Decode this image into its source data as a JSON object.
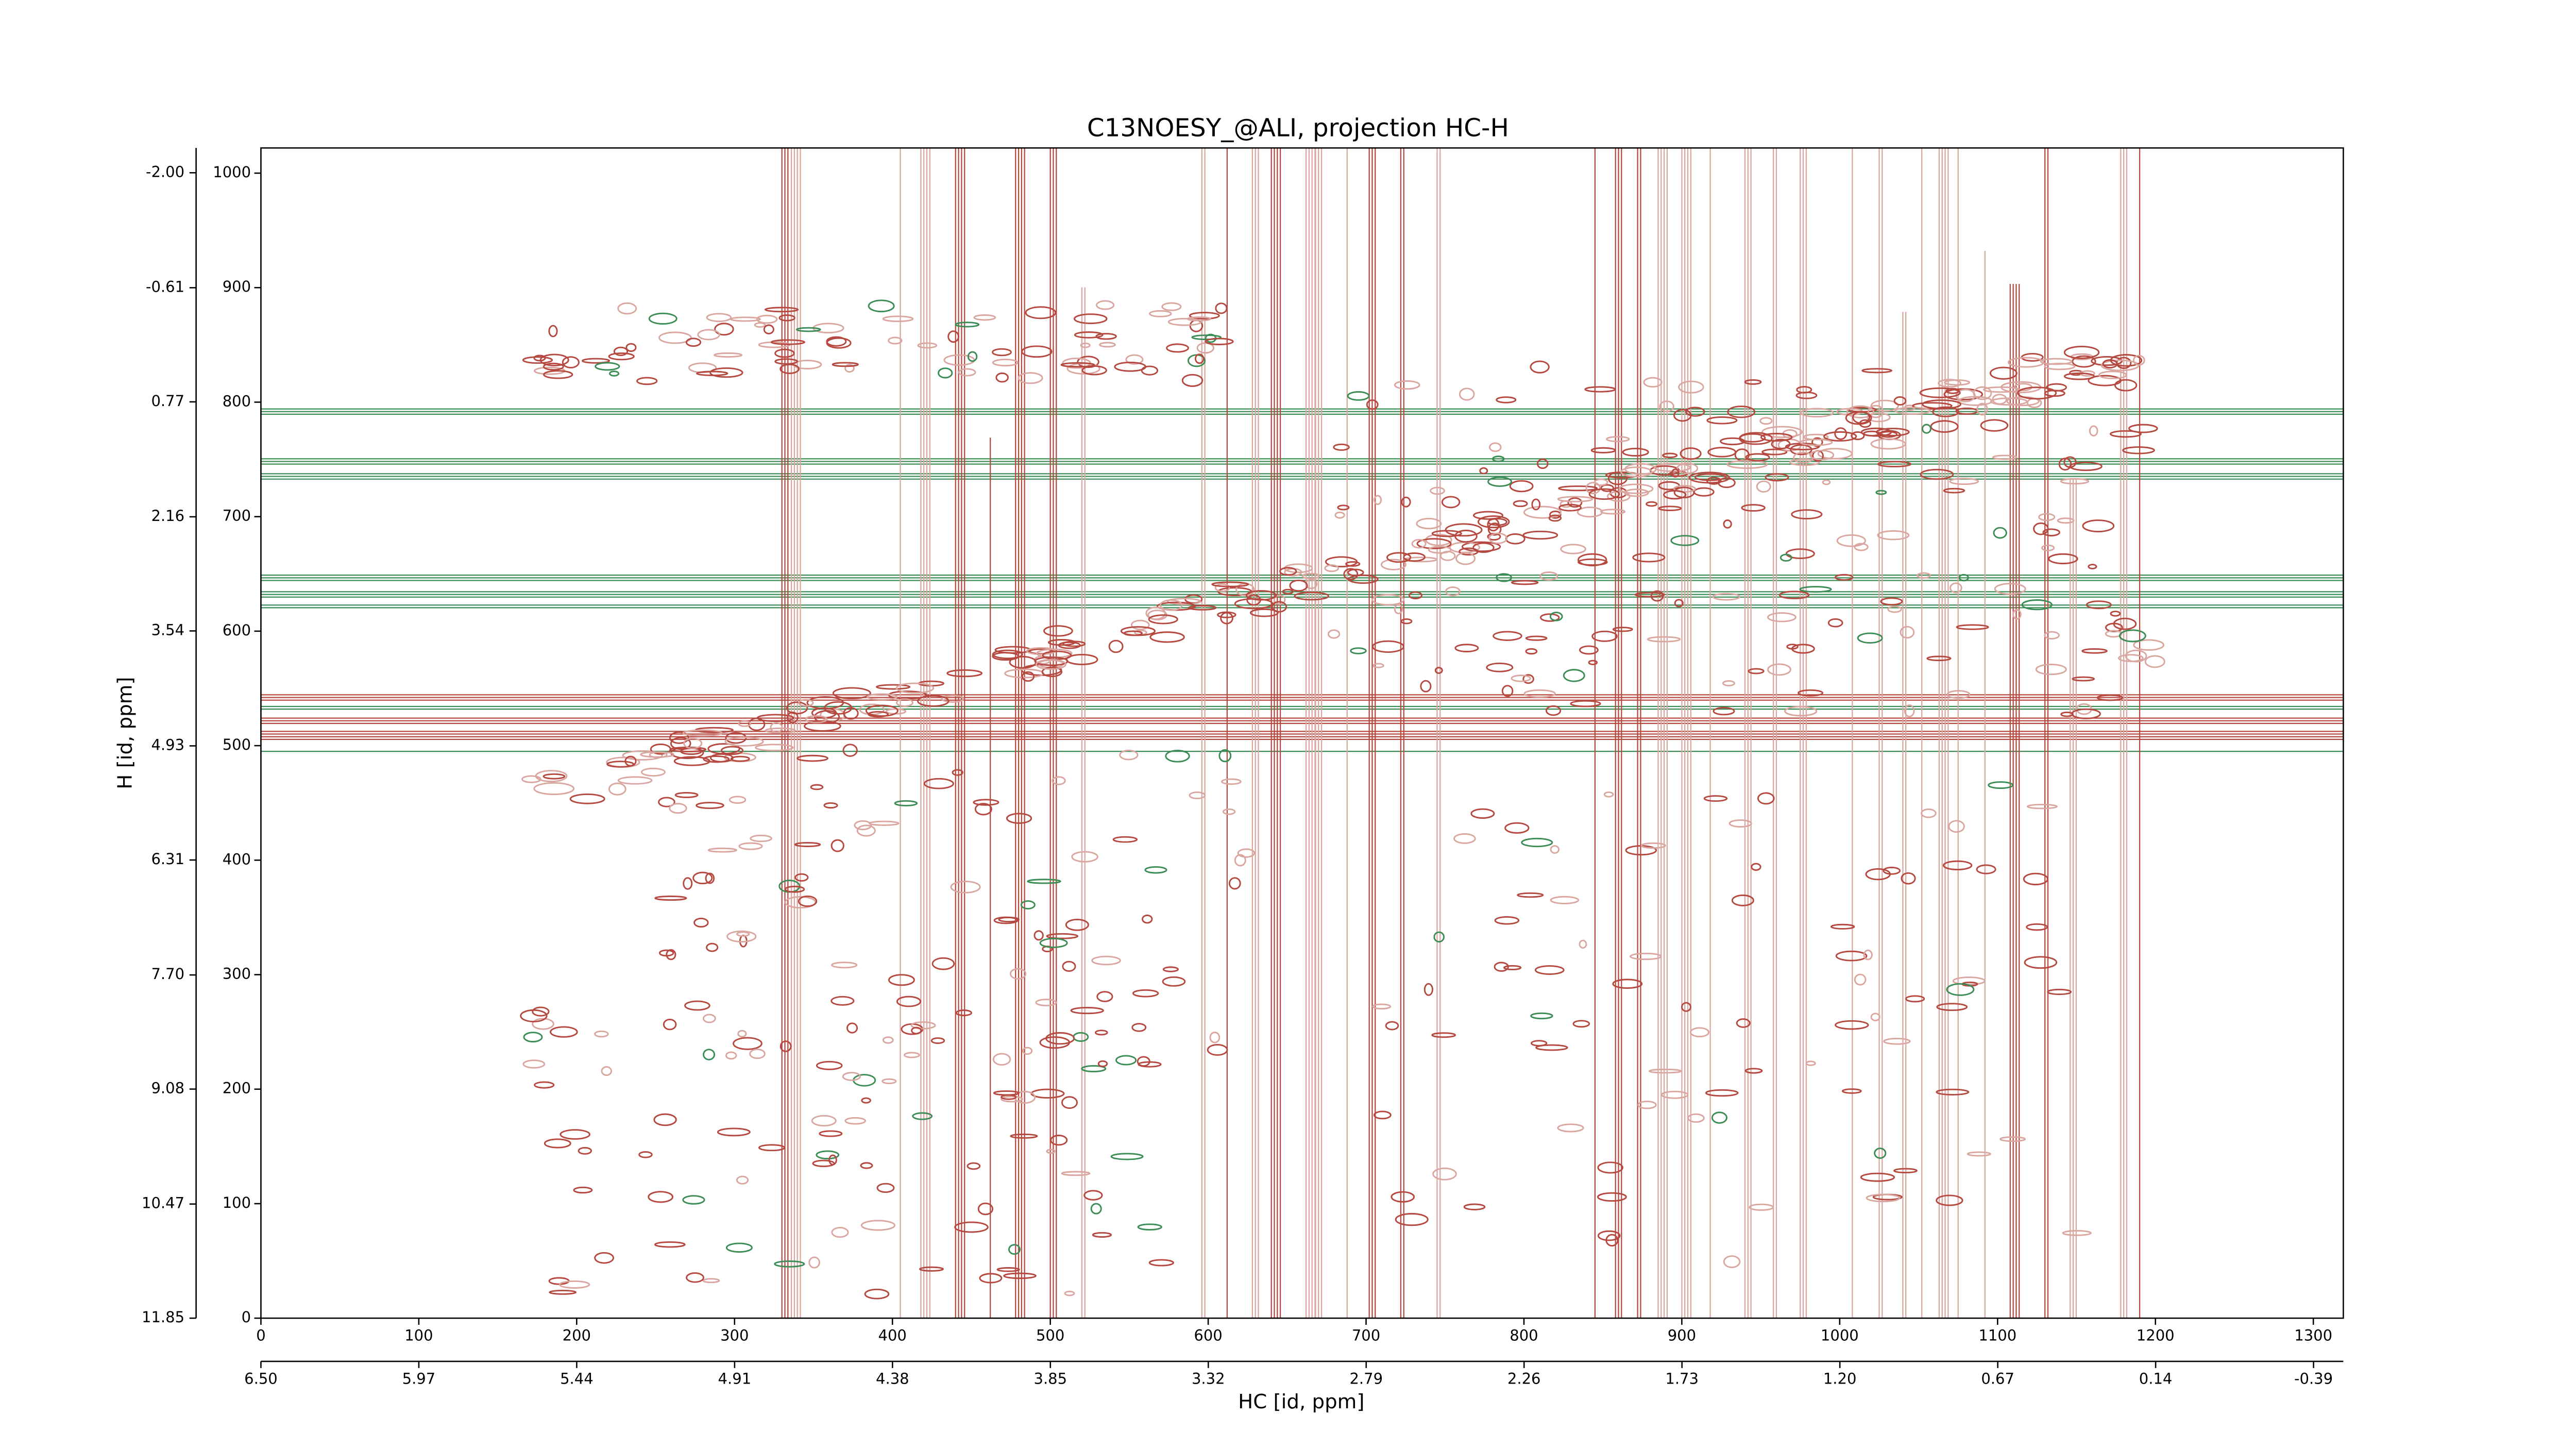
{
  "chart_data": {
    "type": "contour",
    "title": "C13NOESY_@ALI, projection HC-H",
    "xlabel": "HC [id, ppm]",
    "ylabel": "H [id, ppm]",
    "xlim": [
      0,
      1319
    ],
    "xticks": [
      0,
      100,
      200,
      300,
      400,
      500,
      600,
      700,
      800,
      900,
      1000,
      1100,
      1200,
      1300
    ],
    "x2lim": [
      6.5,
      -0.49
    ],
    "x2ticks": [
      {
        "value": 6.5,
        "label": "6.50"
      },
      5.97,
      5.44,
      4.91,
      4.38,
      3.85,
      3.32,
      2.79,
      2.26,
      1.73,
      {
        "value": 1.2,
        "label": "1.20"
      },
      0.67,
      0.14,
      -0.39
    ],
    "ylim": [
      0,
      1022
    ],
    "yticks": [
      0,
      100,
      200,
      300,
      400,
      500,
      600,
      700,
      800,
      900,
      1000
    ],
    "y2lim": [
      11.85,
      -2.3
    ],
    "y2ticks": [
      {
        "value": -2,
        "label": "-2.00"
      },
      -0.61,
      0.77,
      2.16,
      3.54,
      4.93,
      6.31,
      {
        "value": 7.7,
        "label": "7.70"
      },
      9.08,
      10.47,
      11.85
    ],
    "colors": {
      "positive": "#b5483f",
      "negative": "#3c8c55"
    }
  }
}
